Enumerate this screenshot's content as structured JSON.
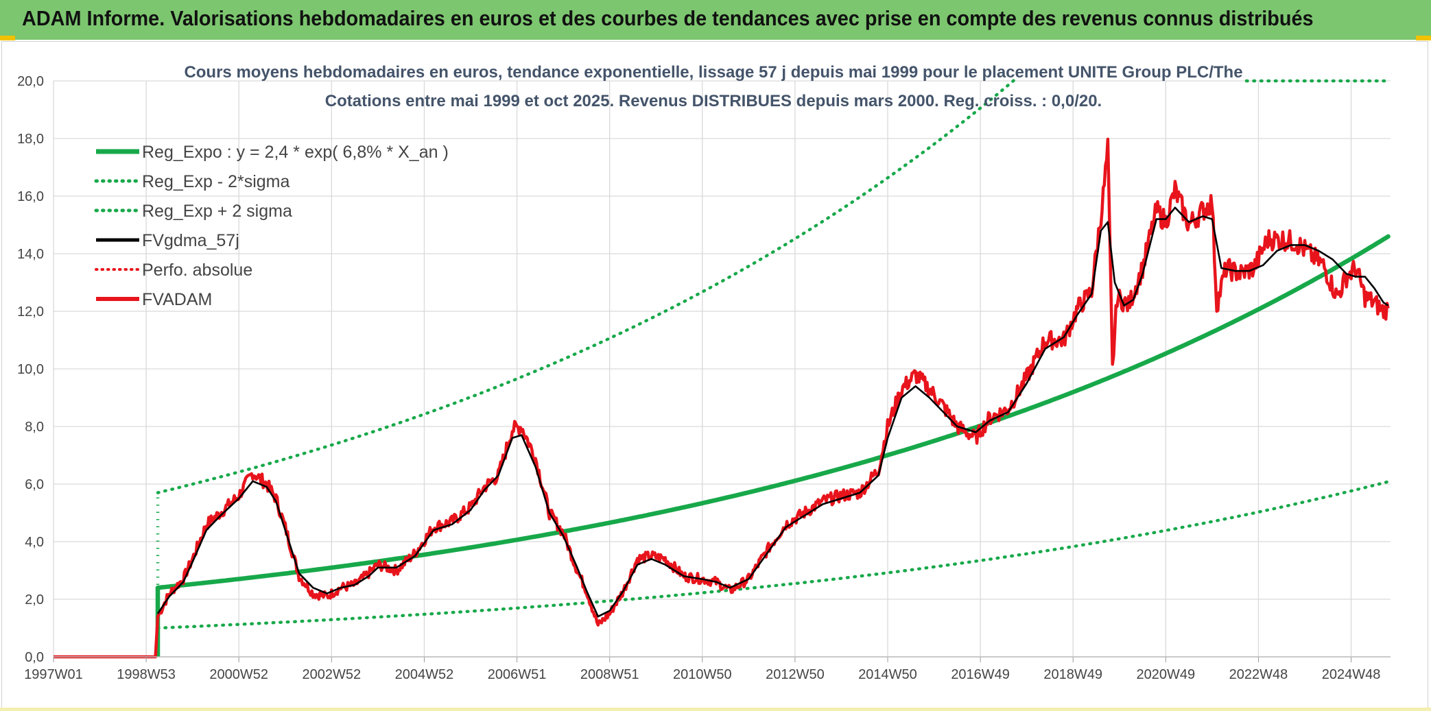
{
  "header": {
    "title": "ADAM Informe. Valorisations hebdomadaires en euros et des courbes de tendances avec prise en compte des revenus connus distribués"
  },
  "colors": {
    "banner": "#7cc66f",
    "trend": "#17a84a",
    "price": "#e8141c",
    "smooth": "#000000",
    "grid": "#d9d9d9"
  },
  "chart_data": {
    "type": "line",
    "title": "Cours moyens hebdomadaires en euros, tendance exponentielle, lissage 57 j depuis mai 1999 pour le placement UNITE Group PLC/The",
    "subtitle": "Cotations entre mai 1999 et oct 2025. Revenus DISTRIBUES depuis mars 2000. Reg. croiss. : 0,0/20.",
    "xlabel": "",
    "ylabel": "",
    "xlim": [
      1997.0,
      2025.85
    ],
    "ylim": [
      0,
      20
    ],
    "yticks": [
      0,
      2,
      4,
      6,
      8,
      10,
      12,
      14,
      16,
      18,
      20
    ],
    "ytick_labels": [
      "0,0",
      "2,0",
      "4,0",
      "6,0",
      "8,0",
      "10,0",
      "12,0",
      "14,0",
      "16,0",
      "18,0",
      "20,0"
    ],
    "xticks": [
      1997.0,
      1999.0,
      2001.0,
      2003.0,
      2005.0,
      2007.0,
      2009.0,
      2011.0,
      2013.0,
      2015.0,
      2017.0,
      2019.0,
      2021.0,
      2023.0,
      2025.0
    ],
    "xtick_labels": [
      "1997W01",
      "1998W53",
      "2000W52",
      "2002W52",
      "2004W52",
      "2006W51",
      "2008W51",
      "2010W50",
      "2012W50",
      "2014W50",
      "2016W49",
      "2018W49",
      "2020W49",
      "2022W48",
      "2024W48"
    ],
    "grid": true,
    "legend_position": "top-left",
    "legend": [
      {
        "label": "Reg_Expo : y = 2,4 * exp( 6,8% *  X_an )",
        "style": "solid-thick",
        "color": "#17a84a"
      },
      {
        "label": "Reg_Exp - 2*sigma",
        "style": "dotted",
        "color": "#17a84a"
      },
      {
        "label": "Reg_Exp + 2 sigma",
        "style": "dotted",
        "color": "#17a84a"
      },
      {
        "label": "FVgdma_57j",
        "style": "solid",
        "color": "#000000"
      },
      {
        "label": "Perfo. absolue",
        "style": "dotted",
        "color": "#e8141c"
      },
      {
        "label": "FVADAM",
        "style": "solid-thick",
        "color": "#e8141c"
      }
    ],
    "start_year": 1999.25,
    "series": [
      {
        "name": "Reg_Expo",
        "type": "exponential",
        "a": 2.4,
        "rate": 0.068,
        "x0": 1999.25
      },
      {
        "name": "Reg_Exp - 2*sigma",
        "type": "exponential",
        "a": 1.0,
        "rate": 0.068,
        "x0": 1999.25
      },
      {
        "name": "Reg_Exp + 2 sigma",
        "type": "exponential",
        "a": 5.7,
        "rate": 0.068,
        "x0": 1999.25
      },
      {
        "name": "FVADAM",
        "x": [
          1997.0,
          1999.2,
          1999.25,
          1999.5,
          1999.8,
          2000.0,
          2000.3,
          2000.6,
          2001.0,
          2001.3,
          2001.6,
          2001.8,
          2002.0,
          2002.3,
          2002.6,
          2002.9,
          2003.2,
          2003.5,
          2003.8,
          2004.0,
          2004.4,
          2004.8,
          2005.2,
          2005.6,
          2006.0,
          2006.3,
          2006.6,
          2006.9,
          2007.1,
          2007.4,
          2007.7,
          2008.0,
          2008.3,
          2008.5,
          2008.75,
          2009.0,
          2009.3,
          2009.6,
          2009.9,
          2010.2,
          2010.6,
          2011.0,
          2011.3,
          2011.6,
          2012.0,
          2012.4,
          2012.8,
          2013.2,
          2013.6,
          2014.0,
          2014.4,
          2014.8,
          2015.0,
          2015.3,
          2015.6,
          2015.9,
          2016.2,
          2016.5,
          2016.9,
          2017.2,
          2017.6,
          2018.0,
          2018.4,
          2018.8,
          2019.1,
          2019.4,
          2019.65,
          2019.75,
          2019.85,
          2019.95,
          2020.2,
          2020.5,
          2020.8,
          2021.0,
          2021.2,
          2021.5,
          2021.8,
          2022.0,
          2022.1,
          2022.3,
          2022.6,
          2022.9,
          2023.2,
          2023.5,
          2023.8,
          2024.1,
          2024.4,
          2024.7,
          2024.9,
          2025.1,
          2025.3,
          2025.5,
          2025.7,
          2025.8
        ],
        "y": [
          0.0,
          0.0,
          1.4,
          2.2,
          2.7,
          3.4,
          4.6,
          5.0,
          5.6,
          6.4,
          6.0,
          5.5,
          4.5,
          2.8,
          2.2,
          2.1,
          2.4,
          2.5,
          2.9,
          3.2,
          3.0,
          3.6,
          4.5,
          4.7,
          5.2,
          5.9,
          6.3,
          7.9,
          8.0,
          6.9,
          5.0,
          4.3,
          3.0,
          2.3,
          1.1,
          1.5,
          2.3,
          3.4,
          3.5,
          3.4,
          2.8,
          2.7,
          2.6,
          2.3,
          2.7,
          3.7,
          4.6,
          5.0,
          5.4,
          5.6,
          5.7,
          6.5,
          8.0,
          9.3,
          9.8,
          9.3,
          8.7,
          8.0,
          7.6,
          8.3,
          8.6,
          9.7,
          11.0,
          11.0,
          12.1,
          12.7,
          16.0,
          17.6,
          10.0,
          12.5,
          12.2,
          13.5,
          15.5,
          15.1,
          16.2,
          15.0,
          15.5,
          15.8,
          12.2,
          13.5,
          13.3,
          13.5,
          14.5,
          14.5,
          14.4,
          14.0,
          13.6,
          12.5,
          13.2,
          13.5,
          12.5,
          12.3,
          12.0,
          12.1
        ]
      },
      {
        "name": "FVgdma_57j",
        "x": [
          1999.25,
          1999.5,
          1999.8,
          2000.0,
          2000.3,
          2000.6,
          2001.0,
          2001.3,
          2001.6,
          2001.8,
          2002.0,
          2002.3,
          2002.6,
          2002.9,
          2003.2,
          2003.5,
          2003.8,
          2004.0,
          2004.4,
          2004.8,
          2005.2,
          2005.6,
          2006.0,
          2006.3,
          2006.6,
          2006.9,
          2007.1,
          2007.4,
          2007.7,
          2008.0,
          2008.3,
          2008.5,
          2008.75,
          2009.0,
          2009.3,
          2009.6,
          2009.9,
          2010.2,
          2010.6,
          2011.0,
          2011.3,
          2011.6,
          2012.0,
          2012.4,
          2012.8,
          2013.2,
          2013.6,
          2014.0,
          2014.4,
          2014.8,
          2015.0,
          2015.3,
          2015.6,
          2015.9,
          2016.2,
          2016.5,
          2016.9,
          2017.2,
          2017.6,
          2018.0,
          2018.4,
          2018.8,
          2019.1,
          2019.4,
          2019.6,
          2019.75,
          2019.9,
          2020.1,
          2020.3,
          2020.5,
          2020.8,
          2021.0,
          2021.2,
          2021.5,
          2021.8,
          2022.0,
          2022.2,
          2022.5,
          2022.8,
          2023.1,
          2023.4,
          2023.7,
          2024.0,
          2024.3,
          2024.6,
          2024.9,
          2025.1,
          2025.3,
          2025.5,
          2025.7,
          2025.8
        ],
        "y": [
          1.5,
          2.1,
          2.6,
          3.3,
          4.4,
          4.9,
          5.5,
          6.1,
          5.9,
          5.4,
          4.4,
          2.9,
          2.4,
          2.2,
          2.4,
          2.5,
          2.8,
          3.1,
          3.1,
          3.5,
          4.4,
          4.6,
          5.1,
          5.8,
          6.3,
          7.6,
          7.7,
          6.6,
          5.0,
          4.2,
          3.1,
          2.3,
          1.4,
          1.6,
          2.3,
          3.2,
          3.4,
          3.2,
          2.8,
          2.7,
          2.6,
          2.4,
          2.7,
          3.6,
          4.5,
          4.9,
          5.3,
          5.5,
          5.7,
          6.3,
          7.6,
          9.0,
          9.4,
          9.0,
          8.5,
          8.0,
          7.8,
          8.2,
          8.5,
          9.5,
          10.7,
          11.1,
          11.9,
          12.6,
          14.8,
          15.1,
          13.0,
          12.2,
          12.4,
          13.3,
          15.2,
          15.2,
          15.6,
          15.1,
          15.3,
          15.2,
          13.5,
          13.4,
          13.4,
          13.6,
          14.1,
          14.3,
          14.3,
          14.1,
          13.8,
          13.3,
          13.2,
          13.2,
          12.8,
          12.3,
          12.2
        ]
      }
    ]
  }
}
